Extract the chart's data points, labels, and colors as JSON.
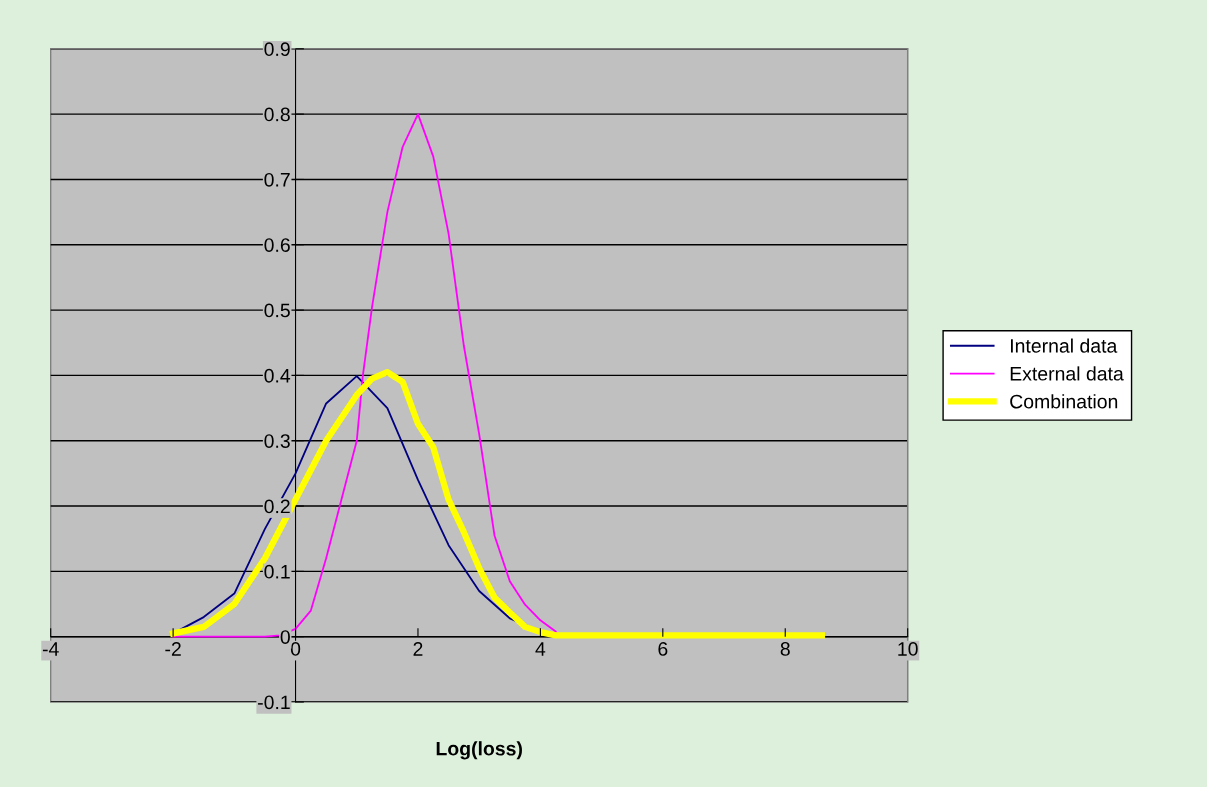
{
  "chart_data": {
    "type": "line",
    "xlabel": "Log(loss)",
    "xlim": [
      -4,
      10
    ],
    "xticks": [
      -4,
      -2,
      0,
      2,
      4,
      6,
      8,
      10
    ],
    "ylim": [
      -0.1,
      0.9
    ],
    "yticks": [
      -0.1,
      0,
      0.1,
      0.2,
      0.3,
      0.4,
      0.5,
      0.6,
      0.7,
      0.8,
      0.9
    ],
    "grid": "y",
    "legend": "right",
    "marker": "none",
    "line_style": "solid",
    "series": [
      {
        "name": "Internal data",
        "color": "#000080",
        "x": [
          -2,
          -1.5,
          -1,
          -0.5,
          0,
          0.5,
          1,
          1.5,
          2,
          2.5,
          3,
          3.5,
          4
        ],
        "values": [
          0.005,
          0.03,
          0.066,
          0.165,
          0.25,
          0.357,
          0.399,
          0.35,
          0.24,
          0.14,
          0.07,
          0.028,
          0.008
        ]
      },
      {
        "name": "External data",
        "color": "#ff00ff",
        "x": [
          -2,
          -1,
          -0.5,
          -0.25,
          0,
          0.25,
          0.5,
          0.75,
          1,
          1.1,
          1.25,
          1.5,
          1.75,
          2,
          2.25,
          2.5,
          2.75,
          3,
          3.25,
          3.5,
          3.75,
          4,
          4.25
        ],
        "values": [
          0,
          0,
          0,
          0.002,
          0.012,
          0.04,
          0.12,
          0.21,
          0.3,
          0.4,
          0.505,
          0.65,
          0.75,
          0.8,
          0.735,
          0.617,
          0.445,
          0.31,
          0.155,
          0.085,
          0.049,
          0.025,
          0.008
        ]
      },
      {
        "name": "Combination",
        "color": "#ffff00",
        "x": [
          -2,
          -1.5,
          -1,
          -0.5,
          0,
          0.5,
          1,
          1.25,
          1.5,
          1.75,
          2,
          2.25,
          2.5,
          2.75,
          3,
          3.25,
          3.5,
          3.75,
          4,
          4.25,
          8.6
        ],
        "values": [
          0.005,
          0.015,
          0.05,
          0.12,
          0.21,
          0.3,
          0.37,
          0.395,
          0.405,
          0.39,
          0.326,
          0.29,
          0.21,
          0.16,
          0.105,
          0.06,
          0.037,
          0.015,
          0.007,
          0.002,
          0.002
        ]
      }
    ]
  }
}
